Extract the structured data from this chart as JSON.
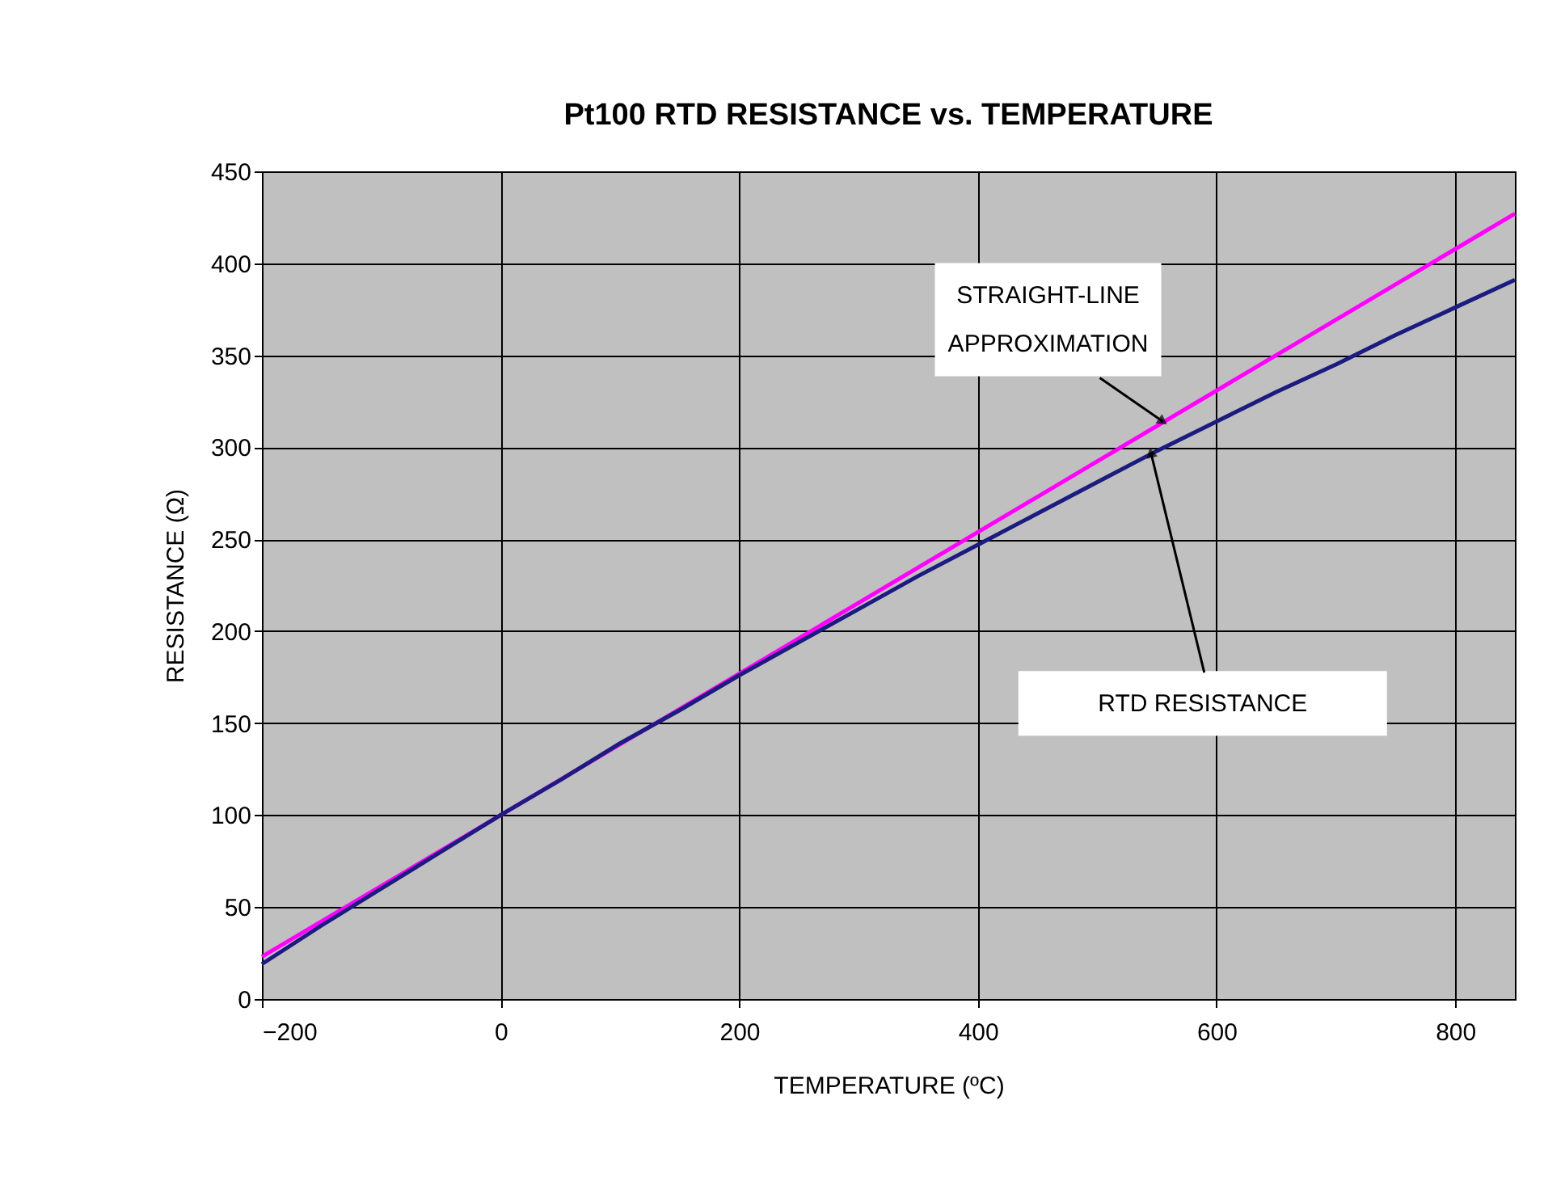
{
  "chart_data": {
    "type": "line",
    "title": "Pt100 RTD RESISTANCE vs. TEMPERATURE",
    "xlabel": "TEMPERATURE (ºC)",
    "ylabel": "RESISTANCE (Ω)",
    "xlim": [
      -200,
      850
    ],
    "xticks": [
      -200,
      0,
      200,
      400,
      600,
      800
    ],
    "ylim": [
      0,
      450
    ],
    "yticks": [
      0,
      50,
      100,
      150,
      200,
      250,
      300,
      350,
      400,
      450
    ],
    "grid": true,
    "legend": false,
    "marker": "none",
    "line_style": "solid",
    "series": [
      {
        "color": "#ff00ff",
        "x": [
          -200,
          850
        ],
        "values": [
          23,
          427
        ]
      },
      {
        "color": "#1c1c80",
        "x": [
          -200,
          -150,
          -100,
          -50,
          0,
          50,
          100,
          150,
          200,
          250,
          300,
          350,
          400,
          450,
          500,
          550,
          600,
          650,
          700,
          750,
          800,
          850
        ],
        "values": [
          19,
          40,
          60,
          80,
          100,
          119,
          139,
          157,
          176,
          194,
          212,
          230,
          247,
          264,
          281,
          298,
          314,
          330,
          345,
          361,
          376,
          391
        ]
      }
    ],
    "annotations": [
      {
        "text": "STRAIGHT-LINE\nAPPROXIMATION",
        "x": 555,
        "y": 314
      },
      {
        "text": "RTD RESISTANCE",
        "x": 545,
        "y": 297
      }
    ]
  }
}
